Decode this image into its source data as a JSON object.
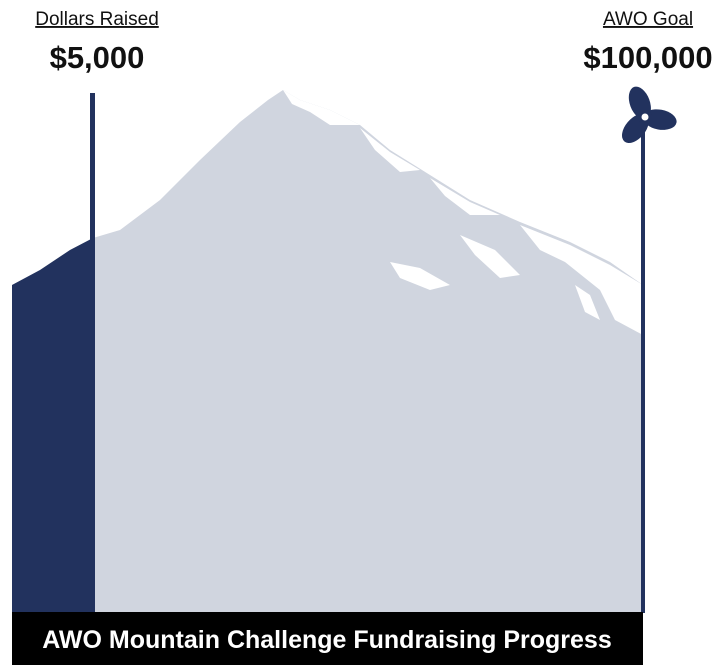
{
  "raised": {
    "label": "Dollars Raised",
    "amount": "$5,000"
  },
  "goal": {
    "label": "AWO Goal",
    "amount": "$100,000"
  },
  "title": "AWO Mountain Challenge Fundraising Progress"
}
